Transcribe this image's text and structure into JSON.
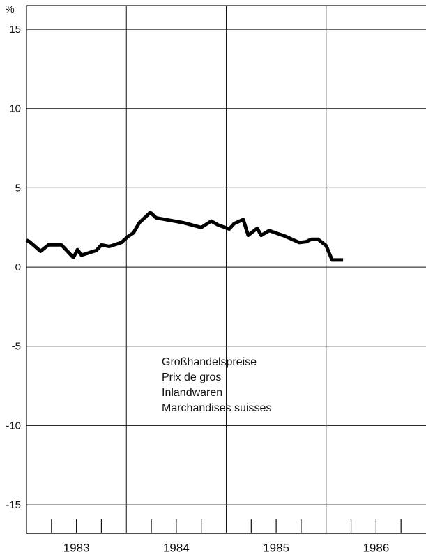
{
  "chart_data": {
    "type": "line",
    "ylabel": "%",
    "annotations": [
      "Großhandelspreise",
      "Prix de gros",
      "Inlandwaren",
      "Marchandises suisses"
    ],
    "xlim": [
      1983,
      1987
    ],
    "ylim": [
      -16.8,
      16.5
    ],
    "yticks": [
      15,
      10,
      5,
      0,
      -5,
      -10,
      -15
    ],
    "xticks": [
      {
        "value": 1983.5,
        "label": "1983"
      },
      {
        "value": 1984.5,
        "label": "1984"
      },
      {
        "value": 1985.5,
        "label": "1985"
      },
      {
        "value": 1986.5,
        "label": "1986"
      }
    ],
    "xgrid": [
      1984,
      1985,
      1986
    ],
    "xminor": [
      1983.25,
      1983.5,
      1983.75,
      1984.25,
      1984.5,
      1984.75,
      1985.25,
      1985.5,
      1985.75,
      1986.25,
      1986.5,
      1986.75
    ],
    "grid": true,
    "color": "#000000",
    "x": [
      1983.0,
      1983.03,
      1983.14,
      1983.22,
      1983.35,
      1983.47,
      1983.51,
      1983.55,
      1983.7,
      1983.75,
      1983.83,
      1983.95,
      1984.02,
      1984.07,
      1984.13,
      1984.24,
      1984.3,
      1984.57,
      1984.75,
      1984.85,
      1984.92,
      1985.03,
      1985.08,
      1985.17,
      1985.22,
      1985.31,
      1985.35,
      1985.43,
      1985.59,
      1985.73,
      1985.8,
      1985.85,
      1985.92,
      1986.0,
      1986.06,
      1986.17
    ],
    "values": [
      1.7,
      1.6,
      1.0,
      1.4,
      1.4,
      0.6,
      1.1,
      0.75,
      1.05,
      1.4,
      1.3,
      1.55,
      1.95,
      2.15,
      2.8,
      3.45,
      3.1,
      2.8,
      2.5,
      2.9,
      2.65,
      2.4,
      2.75,
      3.0,
      2.0,
      2.45,
      2.0,
      2.3,
      1.95,
      1.55,
      1.6,
      1.75,
      1.75,
      1.35,
      0.45,
      0.45
    ]
  }
}
